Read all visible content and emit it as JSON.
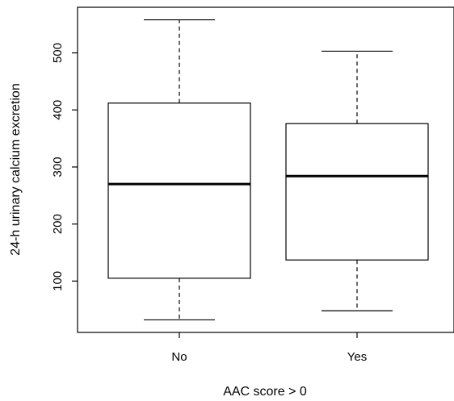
{
  "chart_data": {
    "type": "boxplot",
    "title": "",
    "xlabel": "AAC score > 0",
    "ylabel": "24-h urinary calcium excretion",
    "categories": [
      "No",
      "Yes"
    ],
    "y_ticks": [
      100,
      200,
      300,
      400,
      500
    ],
    "ylim": [
      10,
      580
    ],
    "grid": false,
    "boxes": [
      {
        "category": "No",
        "whisker_low": 32,
        "q1": 105,
        "median": 270,
        "q3": 412,
        "whisker_high": 558
      },
      {
        "category": "Yes",
        "whisker_low": 48,
        "q1": 137,
        "median": 284,
        "q3": 376,
        "whisker_high": 503
      }
    ]
  }
}
